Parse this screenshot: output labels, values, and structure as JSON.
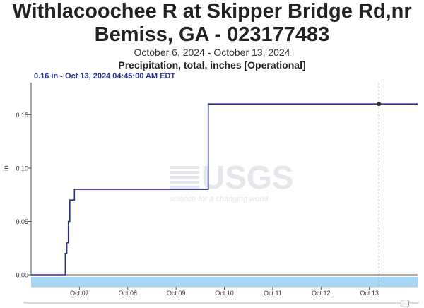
{
  "header": {
    "title_line1": "Withlacoochee R at Skipper Bridge Rd,nr",
    "title_line2": "Bemiss, GA - 023177483",
    "date_range": "October 6, 2024 - October 13, 2024",
    "parameter": "Precipitation, total, inches [Operational]",
    "readout": "0.16 in - Oct 13, 2024 04:45:00 AM EDT"
  },
  "watermark": {
    "logo": "USGS",
    "tagline": "science for a changing world"
  },
  "colors": {
    "series": "#2b2f8f",
    "navigator": "#a8d8f8",
    "watermark": "#e3e6ea"
  },
  "chart_data": {
    "type": "line",
    "title": "Withlacoochee R at Skipper Bridge Rd,nr Bemiss, GA - 023177483",
    "subtitle": "October 6, 2024 - October 13, 2024",
    "ylabel": "in",
    "xlabel": "",
    "ylim": [
      0,
      0.18
    ],
    "xlim": [
      "2024-10-06T00:00",
      "2024-10-13T23:59"
    ],
    "y_ticks": [
      0.0,
      0.05,
      0.1,
      0.15
    ],
    "y_tick_labels": [
      "0.00",
      "0.05",
      "0.10",
      "0.15"
    ],
    "x_ticks": [
      "2024-10-07",
      "2024-10-08",
      "2024-10-09",
      "2024-10-10",
      "2024-10-11",
      "2024-10-12",
      "2024-10-13"
    ],
    "x_tick_labels": [
      "Oct 07",
      "Oct 08",
      "Oct 09",
      "Oct 10",
      "Oct 11",
      "Oct 12",
      "Oct 13"
    ],
    "grid": false,
    "series": [
      {
        "name": "",
        "points": [
          [
            "2024-10-06T00:00",
            0.0
          ],
          [
            "2024-10-06T17:00",
            0.0
          ],
          [
            "2024-10-06T17:00",
            0.02
          ],
          [
            "2024-10-06T17:45",
            0.02
          ],
          [
            "2024-10-06T17:45",
            0.03
          ],
          [
            "2024-10-06T18:30",
            0.03
          ],
          [
            "2024-10-06T18:30",
            0.05
          ],
          [
            "2024-10-06T19:15",
            0.05
          ],
          [
            "2024-10-06T19:15",
            0.07
          ],
          [
            "2024-10-06T21:30",
            0.07
          ],
          [
            "2024-10-06T21:30",
            0.08
          ],
          [
            "2024-10-09T16:00",
            0.08
          ],
          [
            "2024-10-09T16:00",
            0.16
          ],
          [
            "2024-10-13T23:59",
            0.16
          ]
        ]
      }
    ],
    "cursor": {
      "x": "2024-10-13T04:45",
      "y": 0.16
    }
  }
}
